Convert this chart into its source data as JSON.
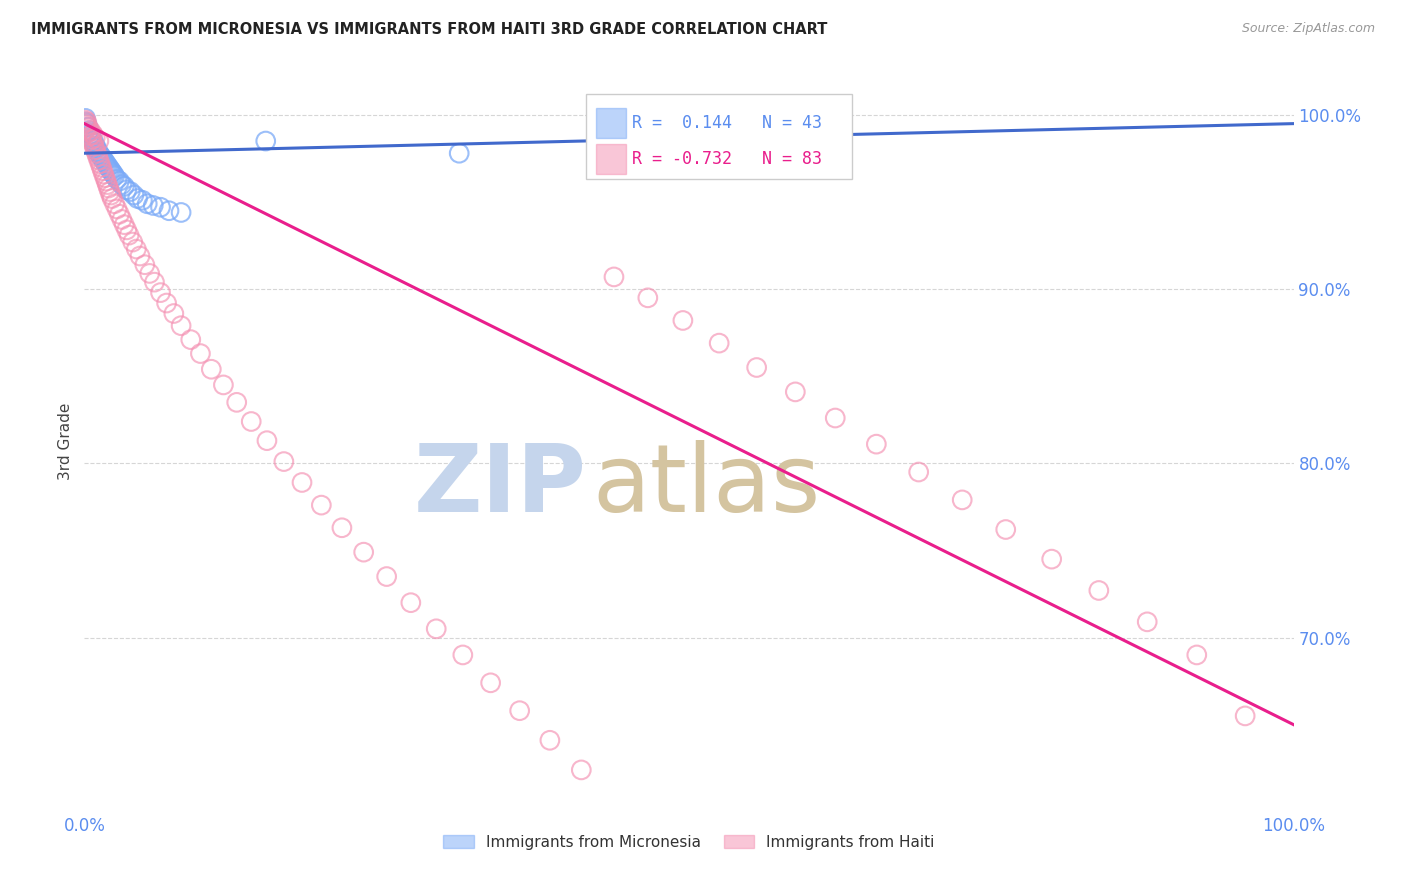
{
  "title": "IMMIGRANTS FROM MICRONESIA VS IMMIGRANTS FROM HAITI 3RD GRADE CORRELATION CHART",
  "source": "Source: ZipAtlas.com",
  "ylabel": "3rd Grade",
  "xlim": [
    0.0,
    1.0
  ],
  "ylim": [
    0.6,
    1.025
  ],
  "yticks": [
    0.7,
    0.8,
    0.9,
    1.0
  ],
  "ytick_labels": [
    "70.0%",
    "80.0%",
    "90.0%",
    "100.0%"
  ],
  "xticks": [
    0.0,
    1.0
  ],
  "xtick_labels": [
    "0.0%",
    "100.0%"
  ],
  "blue_R": 0.144,
  "blue_N": 43,
  "pink_R": -0.732,
  "pink_N": 83,
  "blue_color": "#7BAAF7",
  "pink_color": "#F48FB1",
  "blue_line_color": "#4169CC",
  "pink_line_color": "#E91E8C",
  "watermark_zip_color": "#C8D8F0",
  "watermark_atlas_color": "#D8C8B0",
  "axis_color": "#5B8DEF",
  "grid_color": "#CCCCCC",
  "background_color": "#FFFFFF",
  "blue_scatter_x": [
    0.001,
    0.002,
    0.003,
    0.004,
    0.005,
    0.006,
    0.007,
    0.008,
    0.009,
    0.01,
    0.011,
    0.012,
    0.013,
    0.014,
    0.015,
    0.016,
    0.017,
    0.018,
    0.019,
    0.02,
    0.021,
    0.022,
    0.023,
    0.024,
    0.025,
    0.027,
    0.029,
    0.031,
    0.033,
    0.035,
    0.038,
    0.041,
    0.044,
    0.048,
    0.052,
    0.057,
    0.063,
    0.07,
    0.08,
    0.15,
    0.31,
    0.001,
    0.003
  ],
  "blue_scatter_y": [
    0.998,
    0.995,
    0.993,
    0.991,
    0.989,
    0.987,
    0.985,
    0.984,
    0.982,
    0.981,
    0.979,
    0.978,
    0.977,
    0.976,
    0.975,
    0.974,
    0.973,
    0.972,
    0.971,
    0.97,
    0.969,
    0.968,
    0.967,
    0.966,
    0.965,
    0.963,
    0.962,
    0.96,
    0.959,
    0.957,
    0.956,
    0.954,
    0.952,
    0.951,
    0.949,
    0.948,
    0.947,
    0.945,
    0.944,
    0.985,
    0.978,
    0.996,
    0.99
  ],
  "pink_scatter_x": [
    0.001,
    0.002,
    0.003,
    0.004,
    0.005,
    0.006,
    0.007,
    0.008,
    0.009,
    0.01,
    0.011,
    0.012,
    0.013,
    0.014,
    0.015,
    0.016,
    0.017,
    0.018,
    0.019,
    0.02,
    0.021,
    0.022,
    0.023,
    0.025,
    0.027,
    0.029,
    0.031,
    0.033,
    0.035,
    0.037,
    0.04,
    0.043,
    0.046,
    0.05,
    0.054,
    0.058,
    0.063,
    0.068,
    0.074,
    0.08,
    0.088,
    0.096,
    0.105,
    0.115,
    0.126,
    0.138,
    0.151,
    0.165,
    0.18,
    0.196,
    0.213,
    0.231,
    0.25,
    0.27,
    0.291,
    0.313,
    0.336,
    0.36,
    0.385,
    0.411,
    0.438,
    0.466,
    0.495,
    0.525,
    0.556,
    0.588,
    0.621,
    0.655,
    0.69,
    0.726,
    0.762,
    0.8,
    0.839,
    0.879,
    0.92,
    0.001,
    0.003,
    0.005,
    0.007,
    0.009,
    0.012,
    0.002,
    0.96
  ],
  "pink_scatter_y": [
    0.997,
    0.994,
    0.992,
    0.99,
    0.988,
    0.986,
    0.984,
    0.982,
    0.98,
    0.978,
    0.976,
    0.974,
    0.972,
    0.97,
    0.968,
    0.966,
    0.964,
    0.962,
    0.96,
    0.958,
    0.956,
    0.954,
    0.952,
    0.949,
    0.946,
    0.943,
    0.94,
    0.937,
    0.934,
    0.931,
    0.927,
    0.923,
    0.919,
    0.914,
    0.909,
    0.904,
    0.898,
    0.892,
    0.886,
    0.879,
    0.871,
    0.863,
    0.854,
    0.845,
    0.835,
    0.824,
    0.813,
    0.801,
    0.789,
    0.776,
    0.763,
    0.749,
    0.735,
    0.72,
    0.705,
    0.69,
    0.674,
    0.658,
    0.641,
    0.624,
    0.907,
    0.895,
    0.882,
    0.869,
    0.855,
    0.841,
    0.826,
    0.811,
    0.795,
    0.779,
    0.762,
    0.745,
    0.727,
    0.709,
    0.69,
    0.995,
    0.993,
    0.991,
    0.989,
    0.987,
    0.985,
    0.996,
    0.655
  ],
  "blue_trend_x": [
    0.0,
    1.0
  ],
  "blue_trend_y": [
    0.978,
    0.995
  ],
  "pink_trend_x": [
    0.0,
    1.0
  ],
  "pink_trend_y": [
    0.995,
    0.65
  ]
}
